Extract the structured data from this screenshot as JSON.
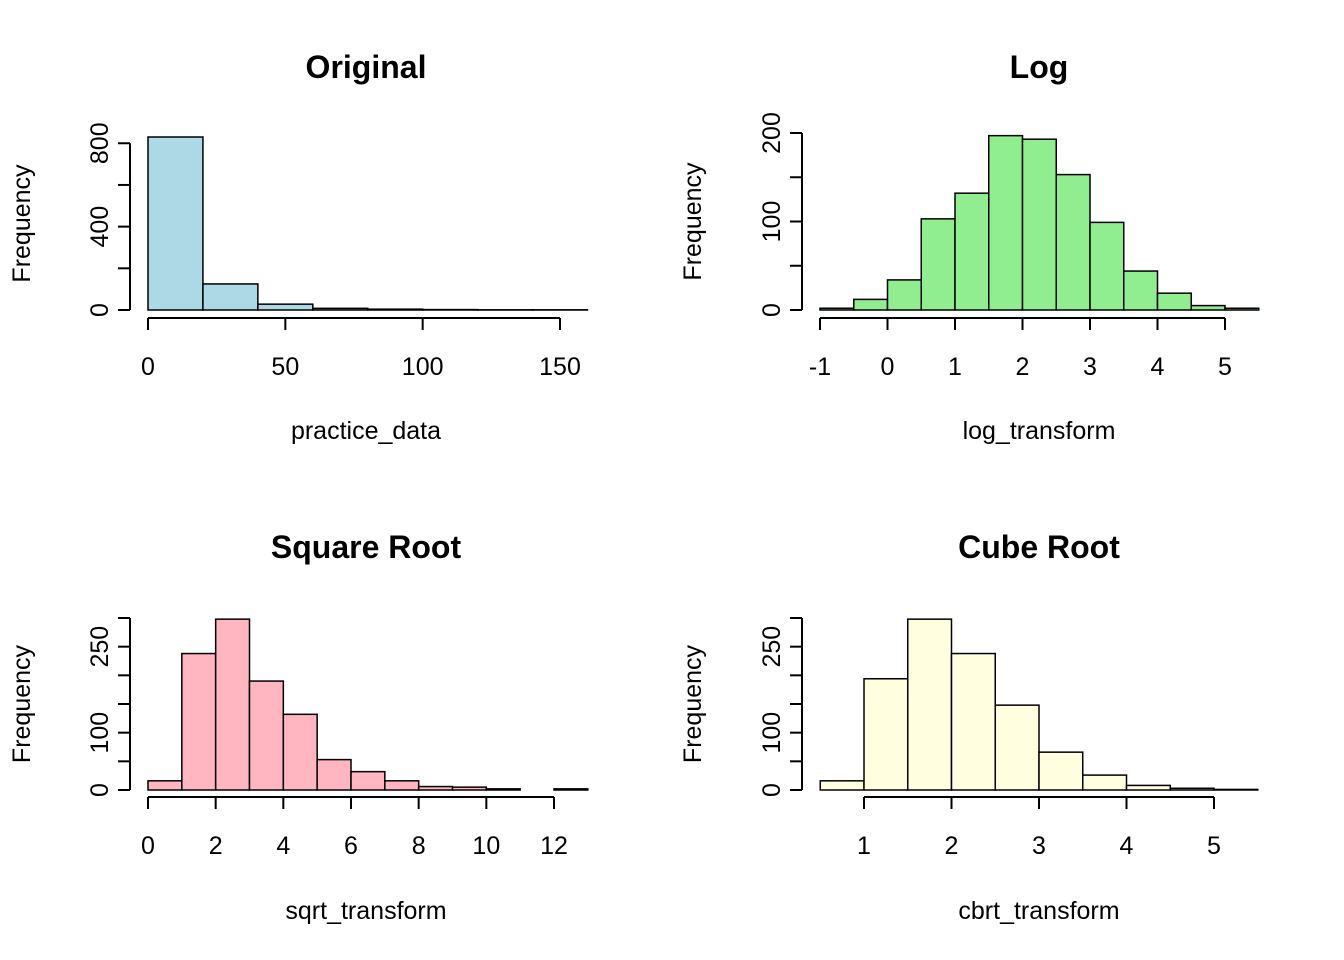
{
  "colors": {
    "Original": "#add8e6",
    "Log": "#90ee90",
    "Square Root": "#ffb6c1",
    "Cube Root": "#ffffe0",
    "bar_stroke": "#000000"
  },
  "chart_data": [
    {
      "type": "bar",
      "title": "Original",
      "xlabel": "practice_data",
      "ylabel": "Frequency",
      "xlim": [
        0,
        160
      ],
      "ylim": [
        0,
        830
      ],
      "x_ticks": [
        0,
        50,
        100,
        150
      ],
      "y_ticks": [
        0,
        400,
        800
      ],
      "y_minor_ticks": [
        200,
        600
      ],
      "bin_edges": [
        0,
        20,
        40,
        60,
        80,
        100,
        120,
        140,
        160
      ],
      "values": [
        830,
        125,
        28,
        8,
        4,
        2,
        1,
        1
      ],
      "grid": false,
      "legend": "none"
    },
    {
      "type": "bar",
      "title": "Log",
      "xlabel": "log_transform",
      "ylabel": "Frequency",
      "xlim": [
        -1,
        5.5
      ],
      "ylim": [
        0,
        200
      ],
      "x_ticks": [
        -1,
        0,
        1,
        2,
        3,
        4,
        5
      ],
      "y_ticks": [
        0,
        100,
        200
      ],
      "y_minor_ticks": [
        50,
        150
      ],
      "bin_edges": [
        -1,
        -0.5,
        0,
        0.5,
        1,
        1.5,
        2,
        2.5,
        3,
        3.5,
        4,
        4.5,
        5,
        5.5
      ],
      "values": [
        2,
        12,
        34,
        103,
        132,
        197,
        193,
        153,
        99,
        44,
        19,
        5,
        2
      ],
      "grid": false,
      "legend": "none"
    },
    {
      "type": "bar",
      "title": "Square Root",
      "xlabel": "sqrt_transform",
      "ylabel": "Frequency",
      "xlim": [
        0,
        13
      ],
      "ylim": [
        0,
        300
      ],
      "x_ticks": [
        0,
        2,
        4,
        6,
        8,
        10,
        12
      ],
      "y_ticks": [
        0,
        100,
        250
      ],
      "y_minor_ticks": [
        50,
        150,
        200,
        300
      ],
      "bin_edges": [
        0,
        1,
        2,
        3,
        4,
        5,
        6,
        7,
        8,
        9,
        10,
        11,
        12,
        13
      ],
      "values": [
        16,
        238,
        298,
        190,
        132,
        53,
        32,
        16,
        6,
        5,
        2,
        0,
        2
      ],
      "grid": false,
      "legend": "none"
    },
    {
      "type": "bar",
      "title": "Cube Root",
      "xlabel": "cbrt_transform",
      "ylabel": "Frequency",
      "xlim": [
        0.5,
        5.5
      ],
      "ylim": [
        0,
        300
      ],
      "x_ticks": [
        1,
        2,
        3,
        4,
        5
      ],
      "y_ticks": [
        0,
        100,
        250
      ],
      "y_minor_ticks": [
        50,
        150,
        200,
        300
      ],
      "bin_edges": [
        0.5,
        1,
        1.5,
        2,
        2.5,
        3,
        3.5,
        4,
        4.5,
        5,
        5.5
      ],
      "values": [
        16,
        194,
        298,
        238,
        148,
        66,
        26,
        8,
        3,
        1
      ],
      "grid": false,
      "legend": "none"
    }
  ]
}
